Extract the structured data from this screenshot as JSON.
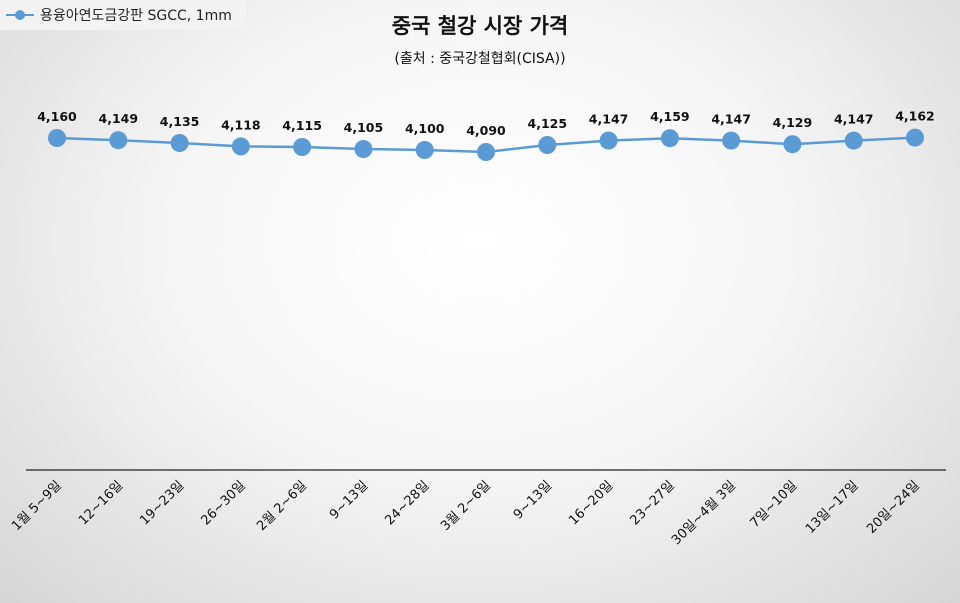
{
  "legend": {
    "label": "용융아연도금강판 SGCC, 1mm",
    "marker_icon": "line-circle-marker-icon"
  },
  "chart_data": {
    "type": "line",
    "title": "중국 철강 시장 가격",
    "subtitle": "(출처 : 중국강철협회(CISA))",
    "categories": [
      "1월 5~9일",
      "12~16일",
      "19~23일",
      "26~30일",
      "2월 2~6일",
      "9~13일",
      "24~28일",
      "3월 2~6일",
      "9~13일",
      "16~20일",
      "23~27일",
      "30일~4월 3일",
      "7일~10일",
      "13일~17일",
      "20일~24일"
    ],
    "series": [
      {
        "name": "용융아연도금강판 SGCC, 1mm",
        "color": "#5b9bd5",
        "values": [
          4160,
          4149,
          4135,
          4118,
          4115,
          4105,
          4100,
          4090,
          4125,
          4147,
          4159,
          4147,
          4129,
          4147,
          4162
        ],
        "labels": [
          "4,160",
          "4,149",
          "4,135",
          "4,118",
          "4,115",
          "4,105",
          "4,100",
          "4,090",
          "4,125",
          "4,147",
          "4,159",
          "4,147",
          "4,129",
          "4,147",
          "4,162"
        ]
      }
    ],
    "xlabel": "",
    "ylabel": "",
    "ylim": [
      2500,
      4300
    ],
    "grid": false,
    "legend_position": "top-left"
  }
}
